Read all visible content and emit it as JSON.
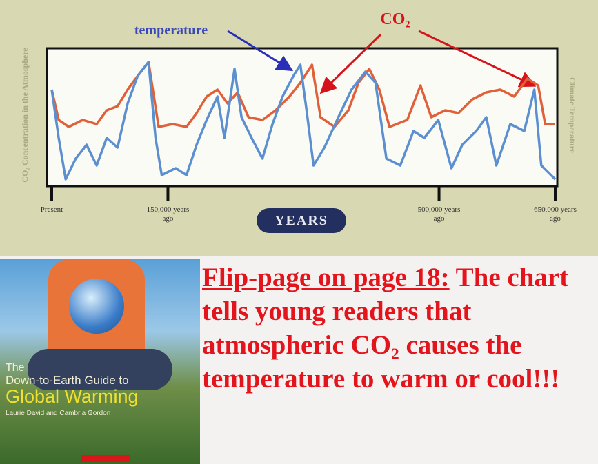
{
  "chart_data": {
    "type": "line",
    "annotations": [
      "temperature",
      "CO₂"
    ],
    "y_label": "CO₂ Concentration in the Atmosphere",
    "y2_label": "Climate Temperature",
    "x_label": "YEARS",
    "xlim": [
      0,
      650000
    ],
    "xticks": [
      {
        "value": 0,
        "label": "Present"
      },
      {
        "value": 150000,
        "label": "150,000 years ago"
      },
      {
        "value": 500000,
        "label": "500,000 years ago"
      },
      {
        "value": 650000,
        "label": "650,000 years ago"
      }
    ],
    "ylim": [
      0,
      100
    ],
    "series": [
      {
        "name": "CO₂",
        "color": "#e0603a",
        "x": [
          0,
          9000,
          22000,
          40000,
          58000,
          71000,
          85000,
          98000,
          111000,
          125000,
          138000,
          156000,
          174000,
          187000,
          200000,
          214000,
          227000,
          240000,
          254000,
          272000,
          289000,
          307000,
          321000,
          336000,
          347000,
          365000,
          383000,
          396000,
          410000,
          423000,
          436000,
          459000,
          476000,
          490000,
          508000,
          525000,
          543000,
          561000,
          579000,
          597000,
          614000,
          628000,
          637000,
          650000
        ],
        "values": [
          70,
          48,
          43,
          48,
          45,
          55,
          58,
          70,
          80,
          90,
          43,
          45,
          43,
          53,
          65,
          70,
          60,
          68,
          50,
          48,
          55,
          65,
          75,
          88,
          50,
          43,
          55,
          75,
          85,
          70,
          43,
          48,
          73,
          50,
          55,
          53,
          63,
          68,
          70,
          65,
          78,
          73,
          45,
          45
        ]
      },
      {
        "name": "temperature",
        "color": "#5b8fd0",
        "x": [
          0,
          9000,
          18000,
          31000,
          45000,
          58000,
          71000,
          85000,
          98000,
          111000,
          125000,
          134000,
          142000,
          160000,
          174000,
          187000,
          200000,
          214000,
          223000,
          236000,
          245000,
          258000,
          272000,
          285000,
          298000,
          312000,
          321000,
          329000,
          338000,
          352000,
          370000,
          387000,
          405000,
          418000,
          432000,
          450000,
          467000,
          481000,
          499000,
          516000,
          530000,
          548000,
          561000,
          574000,
          592000,
          610000,
          623000,
          632000,
          650000
        ],
        "values": [
          70,
          35,
          5,
          20,
          30,
          15,
          35,
          28,
          60,
          80,
          90,
          35,
          8,
          13,
          8,
          30,
          48,
          65,
          35,
          85,
          50,
          35,
          20,
          45,
          65,
          80,
          88,
          55,
          15,
          28,
          50,
          70,
          83,
          75,
          20,
          15,
          40,
          35,
          48,
          13,
          30,
          40,
          50,
          15,
          45,
          40,
          70,
          15,
          5
        ]
      }
    ]
  },
  "book": {
    "title_lines": [
      "The",
      "Down-to-Earth Guide to",
      "Global Warming"
    ],
    "authors": "Laurie David and Cambria Gordon"
  },
  "caption": {
    "lead": "Flip-page on page 18:",
    "body": "The chart tells young readers that atmospheric CO₂ causes the temperature to warm or cool!!!"
  }
}
